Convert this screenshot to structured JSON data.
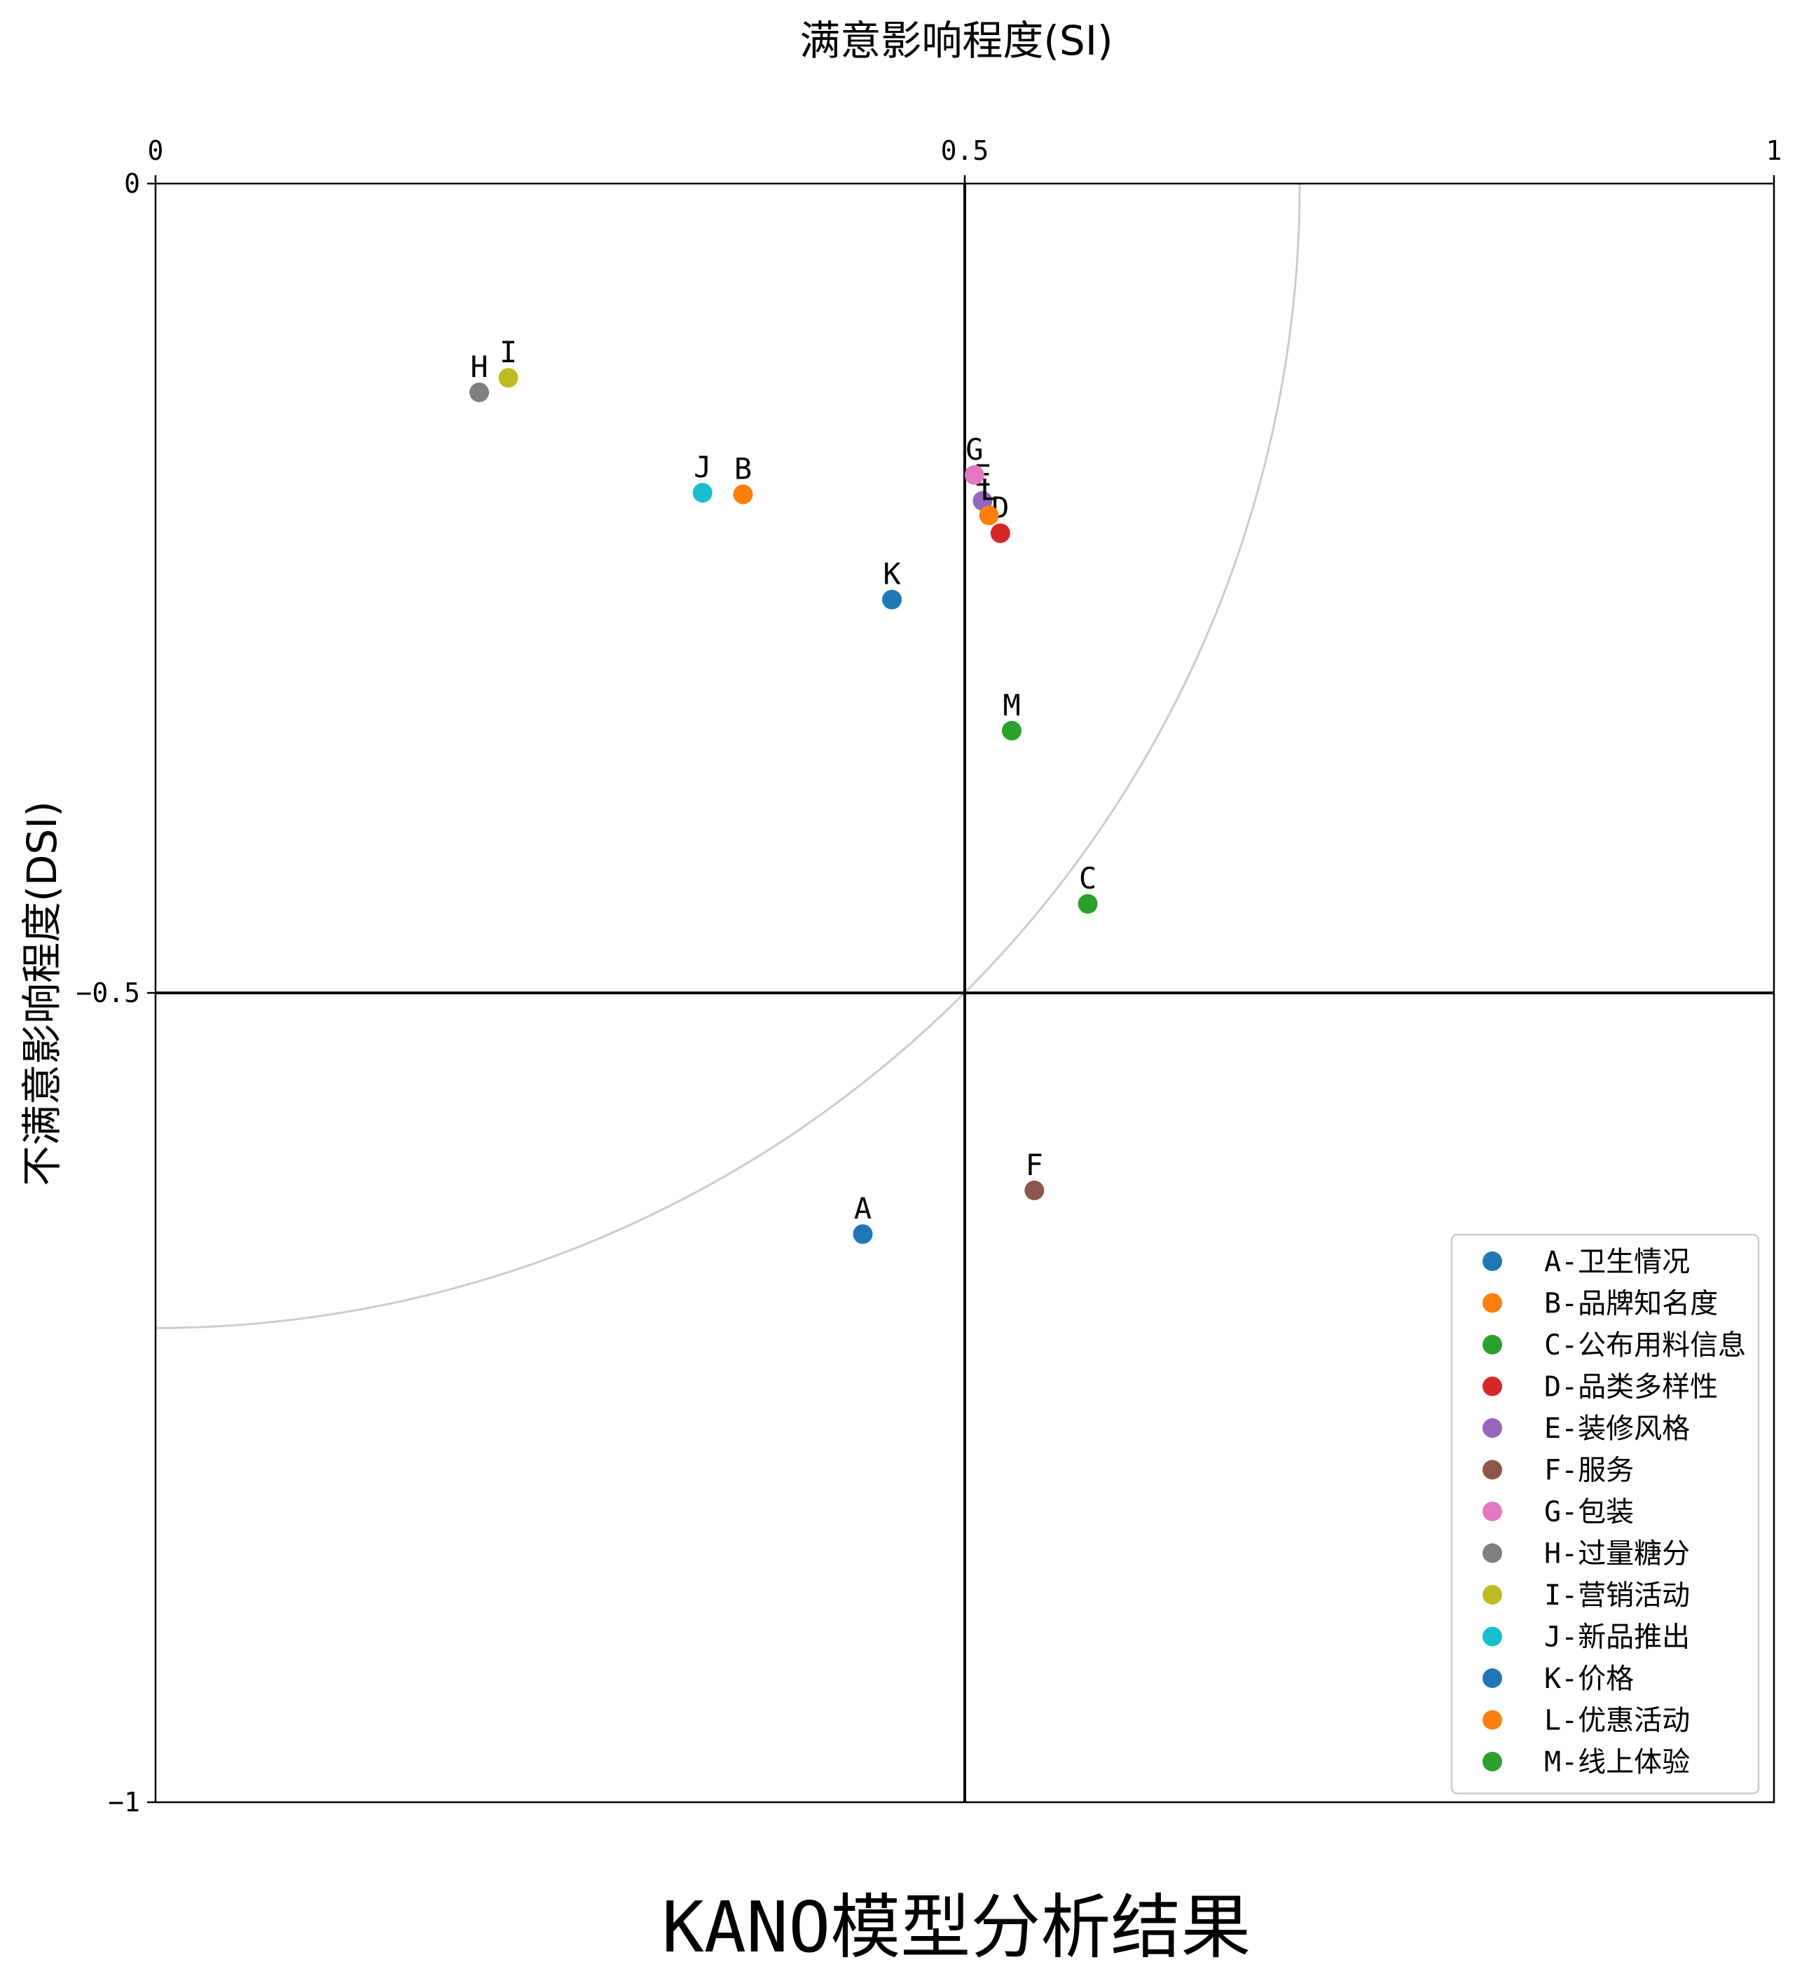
{
  "chart_data": {
    "type": "scatter",
    "title": "KANO模型分析结果",
    "xlabel": "满意影响程度(SI)",
    "ylabel": "不满意影响程度(DSI)",
    "xlim": [
      0,
      1
    ],
    "ylim": [
      -1,
      0
    ],
    "x_axis_position": "top",
    "xticks": [
      0,
      0.5,
      1
    ],
    "xtick_labels": [
      "0",
      "0.5",
      "1"
    ],
    "yticks": [
      0,
      -0.5,
      -1
    ],
    "ytick_labels": [
      "0",
      "−0.5",
      "−1"
    ],
    "reference_lines": {
      "x": 0.5,
      "y": -0.5
    },
    "reference_arc": {
      "center": [
        0,
        0
      ],
      "radius": 0.707,
      "color": "#cccccc"
    },
    "grid": false,
    "legend_position": "lower-right",
    "points": [
      {
        "label": "A",
        "legend": "A-卫生情况",
        "x": 0.437,
        "y": -0.649,
        "color": "#1f77b4"
      },
      {
        "label": "B",
        "legend": "B-品牌知名度",
        "x": 0.363,
        "y": -0.192,
        "color": "#ff7f0e"
      },
      {
        "label": "C",
        "legend": "C-公布用料信息",
        "x": 0.576,
        "y": -0.445,
        "color": "#2ca02c"
      },
      {
        "label": "D",
        "legend": "D-品类多样性",
        "x": 0.522,
        "y": -0.216,
        "color": "#d62728"
      },
      {
        "label": "E",
        "legend": "E-装修风格",
        "x": 0.511,
        "y": -0.196,
        "color": "#9467bd"
      },
      {
        "label": "F",
        "legend": "F-服务",
        "x": 0.543,
        "y": -0.622,
        "color": "#8c564b"
      },
      {
        "label": "G",
        "legend": "G-包装",
        "x": 0.506,
        "y": -0.18,
        "color": "#e377c2"
      },
      {
        "label": "H",
        "legend": "H-过量糖分",
        "x": 0.2,
        "y": -0.129,
        "color": "#7f7f7f"
      },
      {
        "label": "I",
        "legend": "I-营销活动",
        "x": 0.218,
        "y": -0.12,
        "color": "#bcbd22"
      },
      {
        "label": "J",
        "legend": "J-新品推出",
        "x": 0.338,
        "y": -0.191,
        "color": "#17becf"
      },
      {
        "label": "K",
        "legend": "K-价格",
        "x": 0.455,
        "y": -0.257,
        "color": "#1f77b4"
      },
      {
        "label": "L",
        "legend": "L-优惠活动",
        "x": 0.515,
        "y": -0.205,
        "color": "#ff7f0e"
      },
      {
        "label": "M",
        "legend": "M-线上体验",
        "x": 0.529,
        "y": -0.338,
        "color": "#2ca02c"
      }
    ]
  }
}
